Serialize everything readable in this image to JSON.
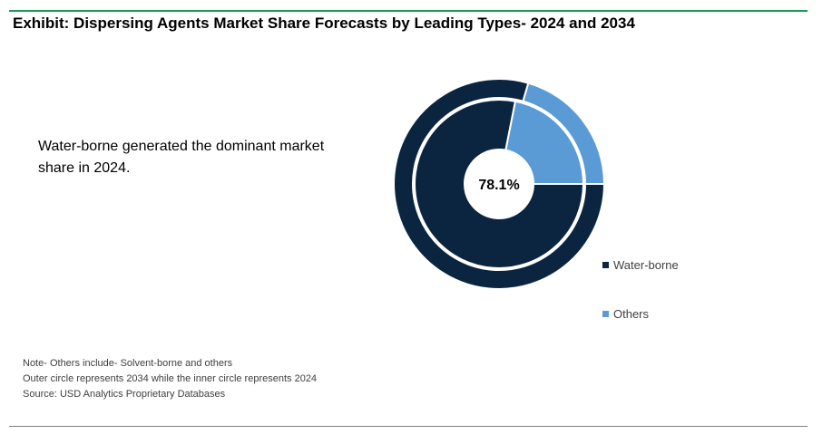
{
  "header": {
    "title": "Exhibit: Dispersing Agents Market Share Forecasts by Leading Types- 2024 and 2034",
    "accent_color": "#1a9a55"
  },
  "callout": {
    "text": "Water-borne generated the dominant market share in 2024."
  },
  "chart_data": {
    "type": "donut",
    "center_label": "78.1%",
    "categories": [
      "Water-borne",
      "Others"
    ],
    "colors": [
      "#0b2540",
      "#5b9bd5"
    ],
    "series": [
      {
        "name": "2034",
        "ring": "outer",
        "values": [
          79.5,
          20.5
        ]
      },
      {
        "name": "2024",
        "ring": "inner",
        "values": [
          78.1,
          21.9
        ]
      }
    ]
  },
  "legend": {
    "items": [
      {
        "label": "Water-borne",
        "color": "#0b2540"
      },
      {
        "label": "Others",
        "color": "#5b9bd5"
      }
    ]
  },
  "notes": {
    "lines": [
      "Note- Others include- Solvent-borne and others",
      "Outer circle represents 2034 while the inner circle represents 2024",
      "Source: USD Analytics Proprietary Databases"
    ]
  }
}
